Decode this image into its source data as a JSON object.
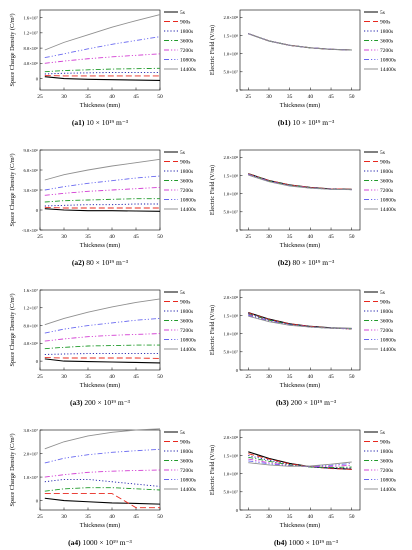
{
  "legend": [
    "5s",
    "900s",
    "1800s",
    "3600s",
    "7200s",
    "10800s",
    "14400s"
  ],
  "series_colors": [
    "#000000",
    "#e8281e",
    "#1a1aa8",
    "#1f9a2a",
    "#d23cd2",
    "#6a6af0",
    "#909090"
  ],
  "series_dash": [
    "solid",
    "dash",
    "dot",
    "dashdot",
    "dashdotdot",
    "dashdotdot",
    "solid"
  ],
  "captions": [
    {
      "id": "a1",
      "text": "10 × 10¹⁹ m⁻³"
    },
    {
      "id": "b1",
      "text": "10 × 10¹⁹ m⁻³"
    },
    {
      "id": "a2",
      "text": "80 × 10¹⁹ m⁻³"
    },
    {
      "id": "b2",
      "text": "80 × 10¹⁹ m⁻³"
    },
    {
      "id": "a3",
      "text": "200 × 10¹⁹ m⁻³"
    },
    {
      "id": "b3",
      "text": "200 × 10¹⁹ m⁻³"
    },
    {
      "id": "a4",
      "text": "1000 × 10¹⁹ m⁻³"
    },
    {
      "id": "b4",
      "text": "1000 × 10¹⁹ m⁻³"
    }
  ],
  "chart_data": [
    {
      "id": "a1",
      "type": "line",
      "xlabel": "Thickness (mm)",
      "ylabel": "Space Charge Density (C/m³)",
      "xlim": [
        25,
        50
      ],
      "xticks": [
        25,
        30,
        35,
        40,
        45,
        50
      ],
      "ylim": [
        -0.3,
        1.8
      ],
      "yticks": [
        0,
        0.4,
        0.8,
        1.2,
        1.6
      ],
      "ytick_labels": [
        "0",
        "4.0×10⁶",
        "8.0×10⁶",
        "1.2×10⁷",
        "1.6×10⁷"
      ],
      "x": [
        26,
        30,
        35,
        40,
        45,
        50
      ],
      "series": [
        {
          "name": "5s",
          "values": [
            0.05,
            0.0,
            -0.02,
            -0.03,
            -0.04,
            -0.05
          ]
        },
        {
          "name": "900s",
          "values": [
            0.08,
            0.07,
            0.07,
            0.07,
            0.07,
            0.07
          ]
        },
        {
          "name": "1800s",
          "values": [
            0.12,
            0.14,
            0.15,
            0.16,
            0.16,
            0.16
          ]
        },
        {
          "name": "3600s",
          "values": [
            0.18,
            0.21,
            0.23,
            0.25,
            0.26,
            0.27
          ]
        },
        {
          "name": "7200s",
          "values": [
            0.4,
            0.46,
            0.52,
            0.57,
            0.61,
            0.65
          ]
        },
        {
          "name": "10800s",
          "values": [
            0.55,
            0.65,
            0.78,
            0.9,
            1.0,
            1.1
          ]
        },
        {
          "name": "14400s",
          "values": [
            0.75,
            0.95,
            1.15,
            1.35,
            1.52,
            1.68
          ]
        }
      ]
    },
    {
      "id": "b1",
      "type": "line",
      "xlabel": "Thickness (mm)",
      "ylabel": "Electric Field (V/m)",
      "xlim": [
        23,
        52
      ],
      "xticks": [
        25,
        30,
        35,
        40,
        45,
        50
      ],
      "ylim": [
        0,
        2.2
      ],
      "yticks": [
        0,
        0.5,
        1.0,
        1.5,
        2.0
      ],
      "ytick_labels": [
        "0",
        "5.0×10⁷",
        "1.0×10⁸",
        "1.5×10⁸",
        "2.0×10⁸"
      ],
      "x": [
        25,
        30,
        35,
        40,
        45,
        50
      ],
      "series": [
        {
          "name": "5s",
          "values": [
            1.55,
            1.35,
            1.23,
            1.16,
            1.12,
            1.1
          ]
        },
        {
          "name": "900s",
          "values": [
            1.55,
            1.35,
            1.23,
            1.16,
            1.12,
            1.1
          ]
        },
        {
          "name": "1800s",
          "values": [
            1.55,
            1.35,
            1.23,
            1.16,
            1.12,
            1.1
          ]
        },
        {
          "name": "3600s",
          "values": [
            1.55,
            1.35,
            1.23,
            1.16,
            1.12,
            1.1
          ]
        },
        {
          "name": "7200s",
          "values": [
            1.55,
            1.35,
            1.23,
            1.16,
            1.12,
            1.1
          ]
        },
        {
          "name": "10800s",
          "values": [
            1.55,
            1.35,
            1.23,
            1.16,
            1.12,
            1.1
          ]
        },
        {
          "name": "14400s",
          "values": [
            1.55,
            1.35,
            1.23,
            1.16,
            1.12,
            1.1
          ]
        }
      ]
    },
    {
      "id": "a2",
      "type": "line",
      "xlabel": "Thickness (mm)",
      "ylabel": "Space Charge Density (C/m³)",
      "xlim": [
        25,
        50
      ],
      "xticks": [
        25,
        30,
        35,
        40,
        45,
        50
      ],
      "ylim": [
        -3.0,
        9.0
      ],
      "yticks": [
        -3.0,
        0,
        3.0,
        6.0,
        9.0
      ],
      "ytick_labels": [
        "-3.0×10⁶",
        "0",
        "3.0×10⁶",
        "6.0×10⁶",
        "9.0×10⁶"
      ],
      "x": [
        26,
        30,
        35,
        40,
        45,
        50
      ],
      "series": [
        {
          "name": "5s",
          "values": [
            0.2,
            0.0,
            -0.1,
            -0.1,
            -0.15,
            -0.2
          ]
        },
        {
          "name": "900s",
          "values": [
            0.4,
            0.3,
            0.3,
            0.3,
            0.3,
            0.3
          ]
        },
        {
          "name": "1800s",
          "values": [
            0.6,
            0.7,
            0.8,
            0.8,
            0.9,
            0.9
          ]
        },
        {
          "name": "3600s",
          "values": [
            1.2,
            1.4,
            1.5,
            1.6,
            1.7,
            1.7
          ]
        },
        {
          "name": "7200s",
          "values": [
            2.2,
            2.5,
            2.8,
            3.0,
            3.2,
            3.4
          ]
        },
        {
          "name": "10800s",
          "values": [
            3.0,
            3.5,
            4.0,
            4.4,
            4.8,
            5.1
          ]
        },
        {
          "name": "14400s",
          "values": [
            4.5,
            5.3,
            6.0,
            6.6,
            7.1,
            7.6
          ]
        }
      ]
    },
    {
      "id": "b2",
      "type": "line",
      "xlabel": "Thickness (mm)",
      "ylabel": "Electric Field (V/m)",
      "xlim": [
        23,
        52
      ],
      "xticks": [
        25,
        30,
        35,
        40,
        45,
        50
      ],
      "ylim": [
        0,
        2.2
      ],
      "yticks": [
        0,
        0.5,
        1.0,
        1.5,
        2.0
      ],
      "ytick_labels": [
        "0",
        "5.0×10⁷",
        "1.0×10⁸",
        "1.5×10⁸",
        "2.0×10⁸"
      ],
      "x": [
        25,
        30,
        35,
        40,
        45,
        50
      ],
      "series": [
        {
          "name": "5s",
          "values": [
            1.55,
            1.36,
            1.24,
            1.17,
            1.13,
            1.12
          ]
        },
        {
          "name": "900s",
          "values": [
            1.55,
            1.36,
            1.24,
            1.17,
            1.13,
            1.12
          ]
        },
        {
          "name": "1800s",
          "values": [
            1.54,
            1.35,
            1.23,
            1.16,
            1.12,
            1.11
          ]
        },
        {
          "name": "3600s",
          "values": [
            1.54,
            1.35,
            1.23,
            1.16,
            1.12,
            1.11
          ]
        },
        {
          "name": "7200s",
          "values": [
            1.53,
            1.34,
            1.22,
            1.16,
            1.12,
            1.11
          ]
        },
        {
          "name": "10800s",
          "values": [
            1.52,
            1.33,
            1.22,
            1.15,
            1.12,
            1.11
          ]
        },
        {
          "name": "14400s",
          "values": [
            1.51,
            1.33,
            1.21,
            1.15,
            1.12,
            1.11
          ]
        }
      ]
    },
    {
      "id": "a3",
      "type": "line",
      "xlabel": "Thickness (mm)",
      "ylabel": "Space Charge Density (C/m³)",
      "xlim": [
        25,
        50
      ],
      "xticks": [
        25,
        30,
        35,
        40,
        45,
        50
      ],
      "ylim": [
        -0.2,
        1.6
      ],
      "yticks": [
        0,
        0.4,
        0.8,
        1.2,
        1.6
      ],
      "ytick_labels": [
        "0",
        "4.0×10⁶",
        "8.0×10⁶",
        "1.2×10⁷",
        "1.6×10⁷"
      ],
      "x": [
        26,
        30,
        35,
        40,
        45,
        50
      ],
      "series": [
        {
          "name": "5s",
          "values": [
            0.05,
            0.0,
            -0.01,
            -0.02,
            -0.03,
            -0.04
          ]
        },
        {
          "name": "900s",
          "values": [
            0.08,
            0.07,
            0.07,
            0.07,
            0.07,
            0.06
          ]
        },
        {
          "name": "1800s",
          "values": [
            0.15,
            0.16,
            0.17,
            0.17,
            0.17,
            0.17
          ]
        },
        {
          "name": "3600s",
          "values": [
            0.28,
            0.31,
            0.34,
            0.35,
            0.36,
            0.36
          ]
        },
        {
          "name": "7200s",
          "values": [
            0.45,
            0.5,
            0.55,
            0.58,
            0.6,
            0.62
          ]
        },
        {
          "name": "10800s",
          "values": [
            0.63,
            0.72,
            0.8,
            0.86,
            0.92,
            0.96
          ]
        },
        {
          "name": "14400s",
          "values": [
            0.82,
            0.96,
            1.1,
            1.22,
            1.32,
            1.4
          ]
        }
      ]
    },
    {
      "id": "b3",
      "type": "line",
      "xlabel": "Thickness (mm)",
      "ylabel": "Electric Field (V/m)",
      "xlim": [
        23,
        52
      ],
      "xticks": [
        25,
        30,
        35,
        40,
        45,
        50
      ],
      "ylim": [
        0,
        2.2
      ],
      "yticks": [
        0,
        0.5,
        1.0,
        1.5,
        2.0
      ],
      "ytick_labels": [
        "0",
        "5.0×10⁷",
        "1.0×10⁸",
        "1.5×10⁸",
        "2.0×10⁸"
      ],
      "x": [
        25,
        30,
        35,
        40,
        45,
        50
      ],
      "series": [
        {
          "name": "5s",
          "values": [
            1.58,
            1.4,
            1.27,
            1.2,
            1.16,
            1.14
          ]
        },
        {
          "name": "900s",
          "values": [
            1.57,
            1.39,
            1.27,
            1.2,
            1.15,
            1.13
          ]
        },
        {
          "name": "1800s",
          "values": [
            1.56,
            1.38,
            1.26,
            1.19,
            1.15,
            1.13
          ]
        },
        {
          "name": "3600s",
          "values": [
            1.54,
            1.37,
            1.25,
            1.18,
            1.15,
            1.13
          ]
        },
        {
          "name": "7200s",
          "values": [
            1.52,
            1.35,
            1.24,
            1.18,
            1.15,
            1.13
          ]
        },
        {
          "name": "10800s",
          "values": [
            1.5,
            1.34,
            1.24,
            1.18,
            1.15,
            1.14
          ]
        },
        {
          "name": "14400s",
          "values": [
            1.48,
            1.33,
            1.23,
            1.18,
            1.15,
            1.15
          ]
        }
      ]
    },
    {
      "id": "a4",
      "type": "line",
      "xlabel": "Thickness (mm)",
      "ylabel": "Space Charge Density (C/m³)",
      "xlim": [
        25,
        50
      ],
      "xticks": [
        25,
        30,
        35,
        40,
        45,
        50
      ],
      "ylim": [
        -0.4,
        3.0
      ],
      "yticks": [
        0,
        1.0,
        2.0,
        3.0
      ],
      "ytick_labels": [
        "0",
        "1.0×10⁷",
        "2.0×10⁷",
        "3.0×10⁷"
      ],
      "x": [
        26,
        30,
        35,
        40,
        45,
        50
      ],
      "series": [
        {
          "name": "5s",
          "values": [
            0.1,
            0.0,
            -0.05,
            -0.1,
            -0.12,
            -0.15
          ]
        },
        {
          "name": "900s",
          "values": [
            0.3,
            0.3,
            0.3,
            0.3,
            -0.3,
            -0.3
          ]
        },
        {
          "name": "1800s",
          "values": [
            0.8,
            0.9,
            0.9,
            0.8,
            0.7,
            0.6
          ]
        },
        {
          "name": "3600s",
          "values": [
            0.4,
            0.5,
            0.55,
            0.55,
            0.5,
            0.45
          ]
        },
        {
          "name": "7200s",
          "values": [
            1.0,
            1.1,
            1.2,
            1.25,
            1.28,
            1.3
          ]
        },
        {
          "name": "10800s",
          "values": [
            1.6,
            1.8,
            1.95,
            2.05,
            2.12,
            2.18
          ]
        },
        {
          "name": "14400s",
          "values": [
            2.2,
            2.5,
            2.75,
            2.9,
            3.0,
            3.05
          ]
        }
      ]
    },
    {
      "id": "b4",
      "type": "line",
      "xlabel": "Thickness (mm)",
      "ylabel": "Electric Field (V/m)",
      "xlim": [
        23,
        52
      ],
      "xticks": [
        25,
        30,
        35,
        40,
        45,
        50
      ],
      "ylim": [
        0,
        2.2
      ],
      "yticks": [
        0,
        0.5,
        1.0,
        1.5,
        2.0
      ],
      "ytick_labels": [
        "0",
        "5.0×10⁷",
        "1.0×10⁸",
        "1.5×10⁸",
        "2.0×10⁸"
      ],
      "x": [
        25,
        30,
        35,
        40,
        45,
        50
      ],
      "series": [
        {
          "name": "5s",
          "values": [
            1.6,
            1.42,
            1.28,
            1.19,
            1.15,
            1.12
          ]
        },
        {
          "name": "900s",
          "values": [
            1.55,
            1.4,
            1.27,
            1.19,
            1.14,
            1.12
          ]
        },
        {
          "name": "1800s",
          "values": [
            1.5,
            1.37,
            1.25,
            1.18,
            1.15,
            1.15
          ]
        },
        {
          "name": "3600s",
          "values": [
            1.45,
            1.34,
            1.24,
            1.18,
            1.17,
            1.18
          ]
        },
        {
          "name": "7200s",
          "values": [
            1.4,
            1.3,
            1.22,
            1.19,
            1.2,
            1.23
          ]
        },
        {
          "name": "10800s",
          "values": [
            1.35,
            1.27,
            1.21,
            1.2,
            1.23,
            1.28
          ]
        },
        {
          "name": "14400s",
          "values": [
            1.3,
            1.24,
            1.2,
            1.21,
            1.26,
            1.32
          ]
        }
      ]
    }
  ]
}
